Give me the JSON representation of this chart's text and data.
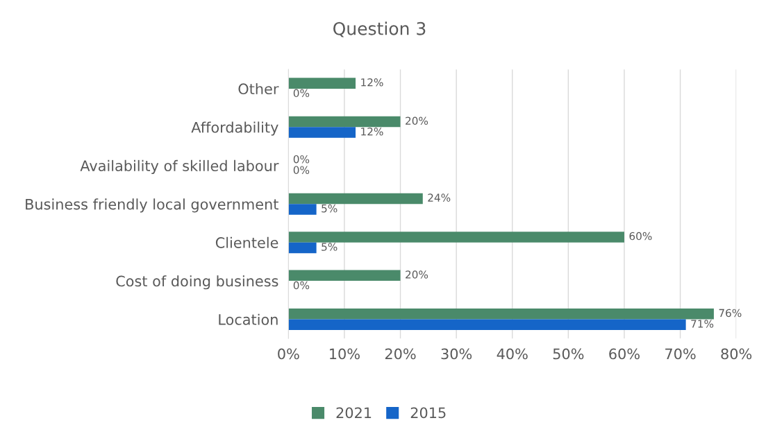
{
  "chart_data": {
    "type": "bar",
    "title": "Question 3",
    "orientation": "horizontal",
    "categories": [
      "Other",
      "Affordability",
      "Availability of skilled labour",
      "Business friendly local government",
      "Clientele",
      "Cost of doing business",
      "Location"
    ],
    "series": [
      {
        "name": "2021",
        "color": "#4a8a6a",
        "values": [
          12,
          20,
          0,
          24,
          60,
          20,
          76
        ],
        "value_labels": [
          "12%",
          "20%",
          "0%",
          "24%",
          "60%",
          "20%",
          "76%"
        ]
      },
      {
        "name": "2015",
        "color": "#1565c8",
        "values": [
          0,
          12,
          0,
          5,
          5,
          0,
          71
        ],
        "value_labels": [
          "0%",
          "12%",
          "0%",
          "5%",
          "5%",
          "0%",
          "71%"
        ]
      }
    ],
    "xlim": [
      0,
      80
    ],
    "xticks": [
      {
        "value": 0,
        "label": "0%"
      },
      {
        "value": 10,
        "label": "10%"
      },
      {
        "value": 20,
        "label": "20%"
      },
      {
        "value": 30,
        "label": "30%"
      },
      {
        "value": 40,
        "label": "40%"
      },
      {
        "value": 50,
        "label": "50%"
      },
      {
        "value": 60,
        "label": "60%"
      },
      {
        "value": 70,
        "label": "70%"
      },
      {
        "value": 80,
        "label": "80%"
      }
    ],
    "grid": "x",
    "legend": "bottom"
  }
}
